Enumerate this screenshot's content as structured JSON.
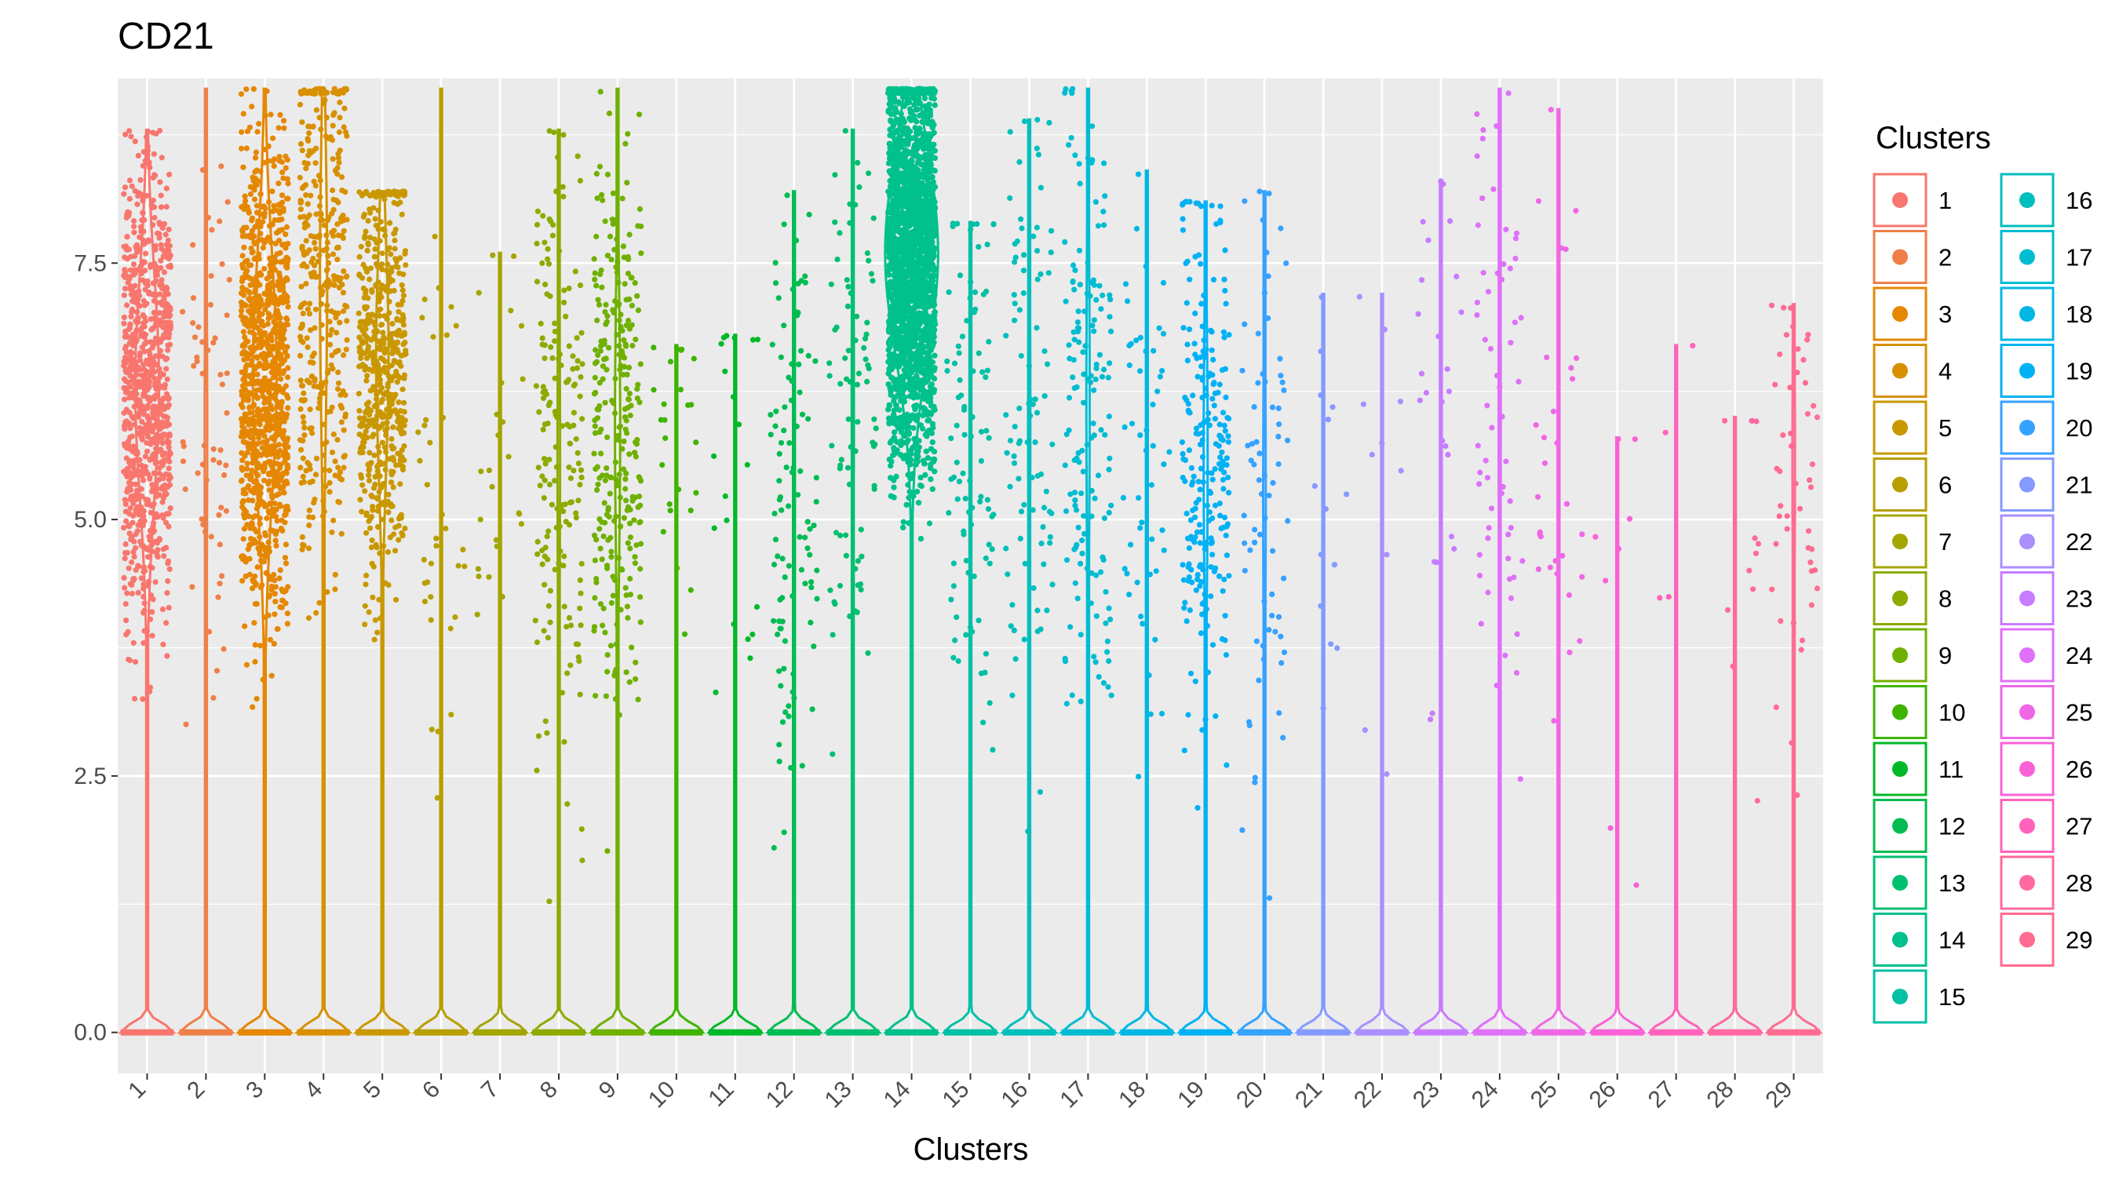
{
  "chart_data": {
    "type": "violin",
    "title": "CD21",
    "xlabel": "Clusters",
    "ylabel": "",
    "ylim": [
      -0.4,
      9.3
    ],
    "yticks": [
      0.0,
      2.5,
      5.0,
      7.5
    ],
    "ytick_labels": [
      "0.0",
      "2.5",
      "5.0",
      "7.5"
    ],
    "grid": true,
    "legend": {
      "title": "Clusters",
      "placement": "right",
      "columns": 2
    },
    "categories": [
      "1",
      "2",
      "3",
      "4",
      "5",
      "6",
      "7",
      "8",
      "9",
      "10",
      "11",
      "12",
      "13",
      "14",
      "15",
      "16",
      "17",
      "18",
      "19",
      "20",
      "21",
      "22",
      "23",
      "24",
      "25",
      "26",
      "27",
      "28",
      "29"
    ],
    "colors": [
      "#F8766D",
      "#EF7F48",
      "#E58700",
      "#D89000",
      "#C99800",
      "#B79F00",
      "#A3A500",
      "#8CAB00",
      "#6FB000",
      "#3FB400",
      "#00B929",
      "#00BC52",
      "#00BF71",
      "#00C08C",
      "#00C0A5",
      "#00BFBC",
      "#00BCD1",
      "#00B7E4",
      "#00B1F4",
      "#35A2FF",
      "#849AFF",
      "#AA8FFF",
      "#C77CFF",
      "#DF70F8",
      "#F067E6",
      "#FB61D7",
      "#FF62BC",
      "#FF69A1",
      "#FF6C91"
    ],
    "series": [
      {
        "name": "1",
        "max": 8.8,
        "nonzero_points": 900,
        "center": 6.3,
        "spread": 1.1,
        "zero_fraction": 0.55
      },
      {
        "name": "2",
        "max": 9.2,
        "nonzero_points": 60,
        "center": 5.8,
        "spread": 1.6,
        "zero_fraction": 0.92
      },
      {
        "name": "3",
        "max": 9.2,
        "nonzero_points": 1000,
        "center": 6.4,
        "spread": 1.2,
        "zero_fraction": 0.55
      },
      {
        "name": "4",
        "max": 9.2,
        "nonzero_points": 380,
        "center": 7.3,
        "spread": 1.4,
        "zero_fraction": 0.8
      },
      {
        "name": "5",
        "max": 8.2,
        "nonzero_points": 550,
        "center": 6.6,
        "spread": 1.1,
        "zero_fraction": 0.7
      },
      {
        "name": "6",
        "max": 9.2,
        "nonzero_points": 35,
        "center": 5.5,
        "spread": 1.6,
        "zero_fraction": 0.96
      },
      {
        "name": "7",
        "max": 7.6,
        "nonzero_points": 25,
        "center": 5.6,
        "spread": 1.3,
        "zero_fraction": 0.96
      },
      {
        "name": "8",
        "max": 8.8,
        "nonzero_points": 170,
        "center": 5.6,
        "spread": 1.5,
        "zero_fraction": 0.92
      },
      {
        "name": "9",
        "max": 9.2,
        "nonzero_points": 280,
        "center": 5.9,
        "spread": 1.3,
        "zero_fraction": 0.85
      },
      {
        "name": "10",
        "max": 6.7,
        "nonzero_points": 25,
        "center": 5.8,
        "spread": 0.9,
        "zero_fraction": 0.97
      },
      {
        "name": "11",
        "max": 6.8,
        "nonzero_points": 20,
        "center": 5.4,
        "spread": 1.1,
        "zero_fraction": 0.96
      },
      {
        "name": "12",
        "max": 8.2,
        "nonzero_points": 100,
        "center": 5.2,
        "spread": 1.6,
        "zero_fraction": 0.95
      },
      {
        "name": "13",
        "max": 8.8,
        "nonzero_points": 80,
        "center": 6.2,
        "spread": 1.4,
        "zero_fraction": 0.93
      },
      {
        "name": "14",
        "max": 9.2,
        "nonzero_points": 4000,
        "center": 7.6,
        "spread": 1.0,
        "zero_fraction": 0.35
      },
      {
        "name": "15",
        "max": 7.9,
        "nonzero_points": 90,
        "center": 5.9,
        "spread": 1.4,
        "zero_fraction": 0.94
      },
      {
        "name": "16",
        "max": 8.9,
        "nonzero_points": 90,
        "center": 6.0,
        "spread": 1.5,
        "zero_fraction": 0.93
      },
      {
        "name": "17",
        "max": 9.2,
        "nonzero_points": 150,
        "center": 6.2,
        "spread": 1.6,
        "zero_fraction": 0.9
      },
      {
        "name": "18",
        "max": 8.4,
        "nonzero_points": 50,
        "center": 5.4,
        "spread": 1.5,
        "zero_fraction": 0.95
      },
      {
        "name": "19",
        "max": 8.1,
        "nonzero_points": 230,
        "center": 5.6,
        "spread": 1.3,
        "zero_fraction": 0.88
      },
      {
        "name": "20",
        "max": 8.2,
        "nonzero_points": 70,
        "center": 5.2,
        "spread": 1.4,
        "zero_fraction": 0.92
      },
      {
        "name": "21",
        "max": 7.2,
        "nonzero_points": 15,
        "center": 5.6,
        "spread": 1.3,
        "zero_fraction": 0.97
      },
      {
        "name": "22",
        "max": 7.2,
        "nonzero_points": 10,
        "center": 5.8,
        "spread": 1.3,
        "zero_fraction": 0.97
      },
      {
        "name": "23",
        "max": 8.3,
        "nonzero_points": 25,
        "center": 6.0,
        "spread": 1.3,
        "zero_fraction": 0.96
      },
      {
        "name": "24",
        "max": 9.2,
        "nonzero_points": 60,
        "center": 6.0,
        "spread": 1.6,
        "zero_fraction": 0.93
      },
      {
        "name": "25",
        "max": 9.0,
        "nonzero_points": 30,
        "center": 5.9,
        "spread": 1.5,
        "zero_fraction": 0.95
      },
      {
        "name": "26",
        "max": 5.8,
        "nonzero_points": 8,
        "center": 4.4,
        "spread": 1.3,
        "zero_fraction": 0.97
      },
      {
        "name": "27",
        "max": 6.7,
        "nonzero_points": 4,
        "center": 5.8,
        "spread": 1.0,
        "zero_fraction": 0.98
      },
      {
        "name": "28",
        "max": 6.0,
        "nonzero_points": 12,
        "center": 4.6,
        "spread": 1.3,
        "zero_fraction": 0.97
      },
      {
        "name": "29",
        "max": 7.1,
        "nonzero_points": 50,
        "center": 5.6,
        "spread": 1.3,
        "zero_fraction": 0.92
      }
    ]
  }
}
